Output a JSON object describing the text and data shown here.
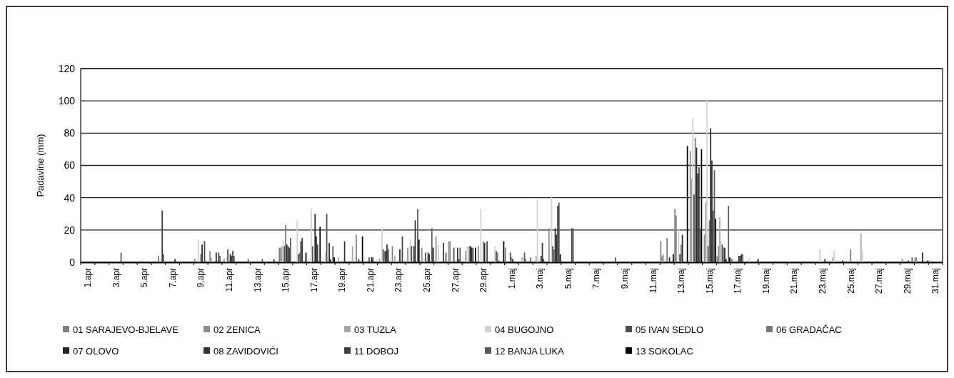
{
  "chart_data": {
    "type": "bar",
    "ylabel": "Padavine (mm)",
    "categories": [
      "1.apr",
      null,
      "3.apr",
      null,
      "5.apr",
      null,
      "7.apr",
      null,
      "9.apr",
      null,
      "11.apr",
      null,
      "13.apr",
      null,
      "15.apr",
      null,
      "17.apr",
      null,
      "19.apr",
      null,
      "21.apr",
      null,
      "23.apr",
      null,
      "25.apr",
      null,
      "27.apr",
      null,
      "29.apr",
      null,
      "1.maj",
      null,
      "3.maj",
      null,
      "5.maj",
      null,
      "7.maj",
      null,
      "9.maj",
      null,
      "11.maj",
      null,
      "13.maj",
      null,
      "15.maj",
      null,
      "17.maj",
      null,
      "19.maj",
      null,
      "21.maj",
      null,
      "23.maj",
      null,
      "25.maj",
      null,
      "27.maj",
      null,
      "29.maj",
      null,
      "31.maj"
    ],
    "ylim": [
      0,
      120
    ],
    "yticks": [
      0,
      20,
      40,
      60,
      80,
      100,
      120
    ],
    "grid": "y",
    "legend": "bottom",
    "series": [
      {
        "name": "01 SARAJEVO-BJELAVE",
        "color": "#7f7f7f",
        "values": [
          0,
          0,
          0,
          0,
          0,
          0,
          0,
          0,
          2,
          0,
          0,
          0,
          0,
          0,
          9,
          0,
          0,
          0,
          0,
          0,
          0,
          0,
          10,
          0,
          0,
          0,
          13,
          0,
          0,
          0,
          9,
          0,
          0,
          0,
          0,
          0,
          0,
          0,
          0,
          0,
          0,
          13,
          33,
          0,
          0,
          4,
          2,
          0,
          0,
          0,
          0,
          0,
          0,
          0,
          0,
          0,
          0,
          0,
          0,
          3,
          1
        ]
      },
      {
        "name": "02 ZENICA",
        "color": "#8c8c8c",
        "values": [
          0,
          0,
          0,
          0,
          0,
          0,
          0,
          0,
          0,
          7,
          2,
          0,
          0,
          0,
          9,
          0,
          0,
          0,
          0,
          0,
          0,
          2,
          0,
          9,
          9,
          16,
          13,
          0,
          10,
          0,
          0,
          0,
          0,
          21,
          0,
          0,
          0,
          0,
          0,
          0,
          0,
          4,
          29,
          69,
          17,
          10,
          2,
          0,
          0,
          0,
          0,
          0,
          0,
          0,
          0,
          0,
          0,
          0,
          2,
          3,
          0
        ]
      },
      {
        "name": "03 TUZLA",
        "color": "#a6a6a6",
        "values": [
          0,
          0,
          0,
          0,
          1,
          0,
          0,
          0,
          0,
          3,
          0,
          0,
          0,
          0,
          10,
          0,
          0,
          0,
          3,
          10,
          0,
          0,
          4,
          0,
          0,
          0,
          0,
          7,
          0,
          0,
          0,
          3,
          4,
          0,
          0,
          0,
          0,
          0,
          0,
          0,
          0,
          5,
          0,
          52,
          37,
          28,
          0,
          1,
          0,
          0,
          0,
          0,
          0,
          3,
          0,
          18,
          0,
          0,
          1,
          0,
          0
        ]
      },
      {
        "name": "04 BUGOJNO",
        "color": "#d0d0d0",
        "values": [
          0,
          0,
          0,
          0,
          0,
          0,
          0,
          0,
          14,
          0,
          3,
          0,
          0,
          0,
          14,
          26,
          33,
          6,
          0,
          0,
          0,
          21,
          0,
          14,
          2,
          11,
          0,
          10,
          33,
          10,
          0,
          0,
          39,
          41,
          0,
          0,
          0,
          0,
          0,
          0,
          0,
          0,
          21,
          89,
          101,
          13,
          0,
          3,
          0,
          0,
          0,
          0,
          8,
          7,
          0,
          7,
          0,
          0,
          0,
          0,
          0
        ]
      },
      {
        "name": "05 IVAN SEDLO",
        "color": "#4d4d4d",
        "values": [
          0,
          0,
          0,
          0,
          0,
          0,
          0,
          0,
          0,
          0,
          8,
          0,
          0,
          0,
          10,
          5,
          10,
          30,
          0,
          0,
          3,
          8,
          0,
          10,
          6,
          0,
          9,
          0,
          0,
          7,
          6,
          6,
          0,
          10,
          0,
          0,
          0,
          0,
          0,
          0,
          0,
          0,
          5,
          42,
          10,
          11,
          0,
          0,
          0,
          0,
          0,
          0,
          0,
          0,
          0,
          0,
          0,
          0,
          0,
          0,
          0
        ]
      },
      {
        "name": "06 GRADAČAC",
        "color": "#7a7a7a",
        "values": [
          0,
          0,
          0,
          0,
          0,
          4,
          0,
          0,
          5,
          0,
          0,
          0,
          0,
          0,
          23,
          6,
          0,
          0,
          0,
          17,
          0,
          7,
          0,
          0,
          0,
          0,
          0,
          10,
          13,
          6,
          3,
          2,
          0,
          8,
          0,
          0,
          0,
          0,
          0,
          0,
          0,
          15,
          11,
          77,
          26,
          9,
          0,
          0,
          0,
          0,
          0,
          0,
          0,
          0,
          8,
          0,
          0,
          0,
          0,
          0,
          0
        ]
      },
      {
        "name": "07 OLOVO",
        "color": "#262626",
        "values": [
          0,
          0,
          0,
          0,
          0,
          0,
          0,
          0,
          11,
          6,
          5,
          0,
          0,
          0,
          11,
          13,
          30,
          12,
          0,
          0,
          3,
          7,
          8,
          10,
          6,
          0,
          0,
          10,
          12,
          1,
          2,
          0,
          4,
          21,
          0,
          0,
          0,
          0,
          0,
          0,
          0,
          0,
          17,
          71,
          83,
          9,
          4,
          0,
          0,
          0,
          0,
          0,
          0,
          0,
          0,
          0,
          0,
          0,
          1,
          6,
          0
        ]
      },
      {
        "name": "08 ZAVIDOVIĆI",
        "color": "#333333",
        "values": [
          0,
          0,
          0,
          0,
          0,
          0,
          2,
          0,
          0,
          0,
          4,
          0,
          0,
          2,
          10,
          15,
          16,
          2,
          13,
          2,
          3,
          11,
          0,
          26,
          5,
          12,
          9,
          9,
          0,
          0,
          0,
          0,
          12,
          17,
          0,
          0,
          0,
          0,
          0,
          0,
          0,
          3,
          0,
          55,
          63,
          2,
          4,
          0,
          0,
          0,
          0,
          0,
          2,
          0,
          0,
          0,
          0,
          0,
          0,
          0,
          0
        ]
      },
      {
        "name": "11 DOBOJ",
        "color": "#404040",
        "values": [
          0,
          0,
          0,
          0,
          0,
          32,
          0,
          0,
          13,
          6,
          7,
          0,
          0,
          0,
          9,
          0,
          11,
          0,
          0,
          0,
          0,
          8,
          16,
          0,
          0,
          0,
          2,
          9,
          13,
          0,
          0,
          0,
          2,
          35,
          21,
          0,
          0,
          0,
          0,
          0,
          0,
          0,
          0,
          59,
          32,
          0,
          5,
          0,
          0,
          0,
          0,
          0,
          0,
          0,
          0,
          0,
          0,
          0,
          0,
          0,
          0
        ]
      },
      {
        "name": "12 BANJA LUKA",
        "color": "#595959",
        "values": [
          0,
          0,
          6,
          0,
          0,
          5,
          0,
          0,
          0,
          4,
          4,
          2,
          2,
          0,
          15,
          0,
          0,
          10,
          0,
          0,
          0,
          0,
          0,
          33,
          21,
          6,
          9,
          0,
          0,
          0,
          0,
          3,
          0,
          37,
          21,
          0,
          0,
          3,
          0,
          0,
          0,
          0,
          0,
          21,
          57,
          35,
          5,
          0,
          0,
          0,
          0,
          0,
          0,
          0,
          0,
          0,
          0,
          0,
          3,
          0,
          0
        ]
      },
      {
        "name": "13 SOKOLAC",
        "color": "#000000",
        "values": [
          0,
          0,
          0,
          0,
          0,
          0,
          0,
          0,
          0,
          0,
          0,
          0,
          0,
          0,
          0,
          6,
          22,
          3,
          0,
          16,
          0,
          0,
          0,
          14,
          9,
          0,
          0,
          9,
          0,
          13,
          0,
          0,
          0,
          5,
          0,
          0,
          0,
          0,
          0,
          0,
          0,
          5,
          72,
          70,
          27,
          3,
          0,
          2,
          0,
          0,
          0,
          0,
          0,
          1,
          0,
          0,
          0,
          0,
          0,
          1,
          0
        ]
      }
    ]
  }
}
